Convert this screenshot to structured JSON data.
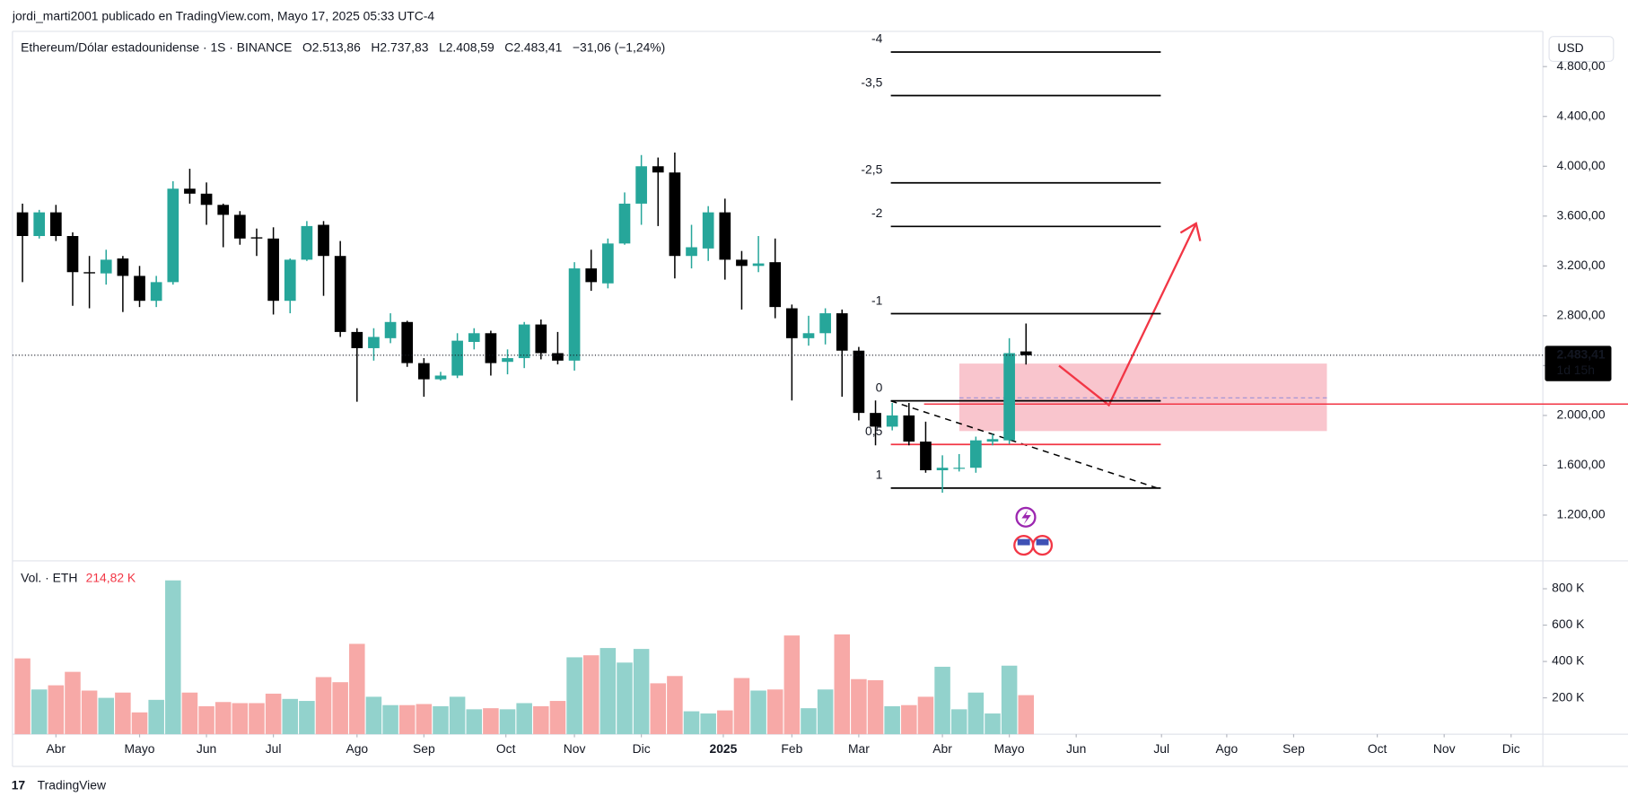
{
  "chart_data": {
    "type": "candlestick",
    "header": "jordi_marti2001 publicado en TradingView.com, Mayo 17, 2025 05:33 UTC-4",
    "title": "Ethereum/Dólar estadounidense · 1S · BINANCE",
    "ohlc_labels": [
      "O2.513,86",
      "H2.737,83",
      "L2.408,59",
      "C2.483,41",
      "−31,06 (−1,24%)"
    ],
    "currency": "USD",
    "last_price_label": "2.483,41",
    "countdown": "1d 15h",
    "volume_title": "Vol. · ETH",
    "volume_last_label": "214,82 K",
    "brand": "TradingView",
    "up_color": "#26a69a",
    "down_color": "#000000",
    "volume_up_color": "#92d2cc",
    "volume_down_color": "#f7a9a7",
    "open": [
      3630,
      3440,
      3630,
      3440,
      3150,
      3140,
      3260,
      3120,
      2920,
      3070,
      3820,
      3780,
      3690,
      3610,
      3430,
      3420,
      2920,
      3250,
      3530,
      3280,
      2670,
      2540,
      2620,
      2750,
      2420,
      2290,
      2320,
      2590,
      2660,
      2430,
      2460,
      2730,
      2500,
      2440,
      3180,
      3060,
      3380,
      3700,
      4000,
      3950,
      3280,
      3340,
      3630,
      3250,
      3200,
      3230,
      2860,
      2620,
      2660,
      2820,
      2520,
      2020,
      1910,
      2000,
      1790,
      1560,
      1580,
      1580,
      1790,
      1800,
      2513.86
    ],
    "high": [
      3700,
      3650,
      3690,
      3470,
      3280,
      3330,
      3280,
      3200,
      3120,
      3880,
      3980,
      3870,
      3700,
      3640,
      3500,
      3510,
      3260,
      3560,
      3560,
      3400,
      2700,
      2700,
      2820,
      2760,
      2460,
      2350,
      2660,
      2700,
      2680,
      2530,
      2750,
      2770,
      2670,
      3230,
      3330,
      3420,
      3790,
      4090,
      4070,
      4110,
      3530,
      3680,
      3740,
      3320,
      3440,
      3420,
      2890,
      2800,
      2860,
      2850,
      2550,
      2120,
      2100,
      2100,
      1950,
      1680,
      1690,
      1830,
      1850,
      2620,
      2737.83
    ],
    "low": [
      3070,
      3420,
      3400,
      2880,
      2860,
      3050,
      2830,
      2870,
      2870,
      3050,
      3700,
      3530,
      3350,
      3370,
      3280,
      2810,
      2820,
      3240,
      2960,
      2630,
      2110,
      2440,
      2580,
      2390,
      2150,
      2280,
      2300,
      2530,
      2320,
      2330,
      2380,
      2450,
      2410,
      2360,
      3000,
      3020,
      3370,
      3530,
      3520,
      3100,
      3180,
      3240,
      3090,
      2850,
      3150,
      2780,
      2120,
      2560,
      2570,
      2150,
      1960,
      1760,
      1880,
      1760,
      1540,
      1380,
      1550,
      1540,
      1760,
      1770,
      2408.59
    ],
    "close": [
      3440,
      3630,
      3440,
      3150,
      3140,
      3250,
      3120,
      2920,
      3070,
      3820,
      3780,
      3690,
      3610,
      3420,
      3420,
      2920,
      3250,
      3520,
      3280,
      2670,
      2540,
      2630,
      2750,
      2420,
      2290,
      2320,
      2600,
      2660,
      2420,
      2460,
      2730,
      2500,
      2440,
      3180,
      3070,
      3380,
      3700,
      4000,
      3950,
      3280,
      3350,
      3630,
      3250,
      3200,
      3220,
      2870,
      2620,
      2660,
      2820,
      2520,
      2020,
      1910,
      2000,
      1790,
      1560,
      1580,
      1580,
      1800,
      1810,
      2500,
      2483.41
    ],
    "volume": [
      417000,
      246000,
      269000,
      343000,
      240000,
      200000,
      229000,
      120000,
      189000,
      846000,
      229000,
      154000,
      177000,
      171000,
      171000,
      223000,
      194000,
      183000,
      314000,
      286000,
      497000,
      206000,
      160000,
      160000,
      166000,
      154000,
      206000,
      137000,
      143000,
      137000,
      171000,
      154000,
      183000,
      423000,
      434000,
      474000,
      394000,
      469000,
      280000,
      320000,
      126000,
      114000,
      131000,
      309000,
      240000,
      246000,
      543000,
      143000,
      246000,
      549000,
      303000,
      297000,
      154000,
      160000,
      206000,
      371000,
      137000,
      229000,
      114000,
      377000,
      214820
    ],
    "xlim": [
      -0.6,
      90.9
    ],
    "xticks": [
      {
        "value": 2.0,
        "label": "Abr"
      },
      {
        "value": 7.0,
        "label": "Mayo"
      },
      {
        "value": 11.0,
        "label": "Jun"
      },
      {
        "value": 15.0,
        "label": "Jul"
      },
      {
        "value": 20.0,
        "label": "Ago"
      },
      {
        "value": 24.0,
        "label": "Sep"
      },
      {
        "value": 28.9,
        "label": "Oct"
      },
      {
        "value": 33.0,
        "label": "Nov"
      },
      {
        "value": 37.0,
        "label": "Dic"
      },
      {
        "value": 41.9,
        "label": "2025"
      },
      {
        "value": 46.0,
        "label": "Feb"
      },
      {
        "value": 50.0,
        "label": "Mar"
      },
      {
        "value": 55.0,
        "label": "Abr"
      },
      {
        "value": 59.0,
        "label": "Mayo"
      },
      {
        "value": 63.0,
        "label": "Jun"
      },
      {
        "value": 68.1,
        "label": "Jul"
      },
      {
        "value": 72.0,
        "label": "Ago"
      },
      {
        "value": 76.0,
        "label": "Sep"
      },
      {
        "value": 81.0,
        "label": "Oct"
      },
      {
        "value": 85.0,
        "label": "Nov"
      },
      {
        "value": 89.0,
        "label": "Dic"
      }
    ],
    "ylim": [
      833,
      5083
    ],
    "yticks": [
      {
        "value": 1200,
        "label": "1.200,00"
      },
      {
        "value": 1600,
        "label": "1.600,00"
      },
      {
        "value": 2000,
        "label": "2.000,00"
      },
      {
        "value": 2400,
        "label": "2.400,00"
      },
      {
        "value": 2800,
        "label": "2.800,00"
      },
      {
        "value": 3200,
        "label": "3.200,00"
      },
      {
        "value": 3600,
        "label": "3.600,00"
      },
      {
        "value": 4000,
        "label": "4.000,00"
      },
      {
        "value": 4400,
        "label": "4.400,00"
      },
      {
        "value": 4800,
        "label": "4.800,00"
      }
    ],
    "volume_ylim": [
      0,
      925000
    ],
    "volume_ticks": [
      {
        "value": 200000,
        "label": "200 K"
      },
      {
        "value": 400000,
        "label": "400 K"
      },
      {
        "value": 600000,
        "label": "600 K"
      },
      {
        "value": 800000,
        "label": "800 K"
      }
    ],
    "fib": {
      "price_at_0": 2117,
      "price_at_1": 1417,
      "levels": [
        -4,
        {
          "value": -3.5,
          "label": "-3,5"
        },
        {
          "value": -2.5,
          "label": "-2,5"
        },
        -2,
        -1,
        0,
        {
          "value": 0.5,
          "label": "0,5"
        },
        1
      ],
      "colors": [
        "#000000",
        "#000000",
        "#000000",
        "#000000",
        "#000000",
        "#000000",
        "#f23645",
        "#000000"
      ]
    }
  }
}
